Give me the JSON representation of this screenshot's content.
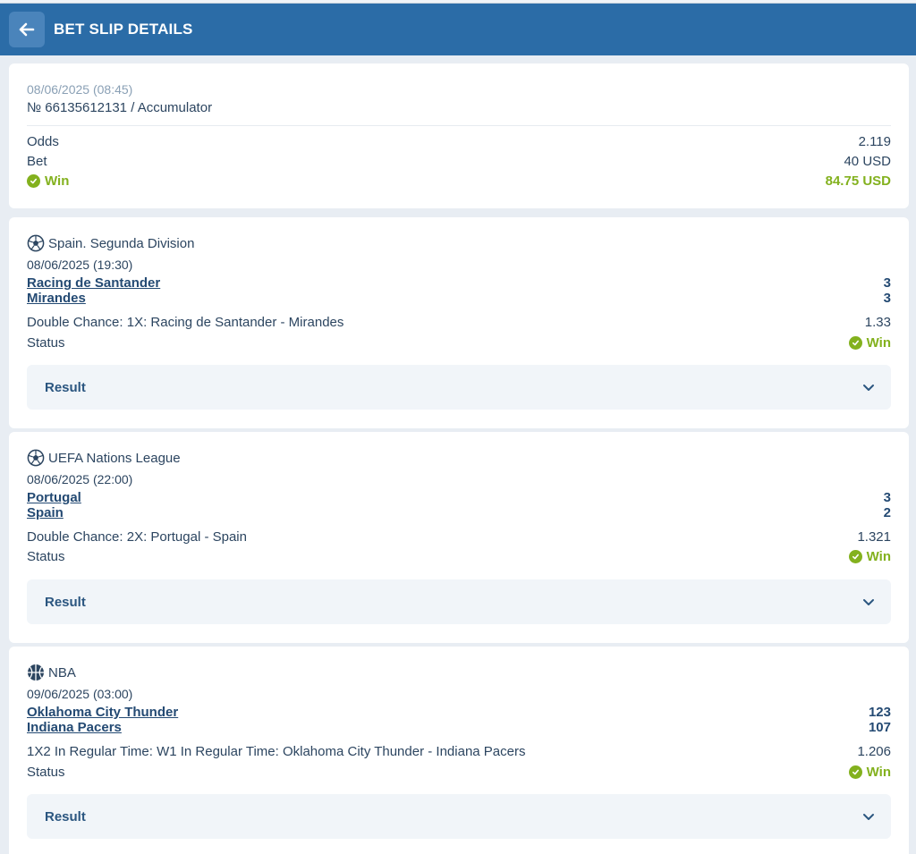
{
  "header": {
    "title": "BET SLIP DETAILS",
    "back_icon": "arrow-left-icon"
  },
  "colors": {
    "header_bg": "#2b6ca7",
    "win": "#83b11e",
    "text": "#2c4560"
  },
  "summary": {
    "date": "08/06/2025 (08:45)",
    "number": "№ 66135612131 / Accumulator",
    "odds_label": "Odds",
    "odds_value": "2.119",
    "bet_label": "Bet",
    "bet_value": "40 USD",
    "win_label": "Win",
    "win_value": "84.75 USD"
  },
  "events": [
    {
      "sport_icon": "soccer-ball-icon",
      "league": "Spain. Segunda Division",
      "date": "08/06/2025 (19:30)",
      "team1": "Racing de Santander",
      "score1": "3",
      "team2": "Mirandes",
      "score2": "3",
      "market": "Double Chance: 1X: Racing de Santander - Mirandes",
      "odds": "1.33",
      "status_label": "Status",
      "status_value": "Win",
      "result_label": "Result"
    },
    {
      "sport_icon": "soccer-ball-icon",
      "league": "UEFA Nations League",
      "date": "08/06/2025 (22:00)",
      "team1": "Portugal",
      "score1": "3",
      "team2": "Spain",
      "score2": "2",
      "market": "Double Chance: 2X: Portugal - Spain",
      "odds": "1.321",
      "status_label": "Status",
      "status_value": "Win",
      "result_label": "Result"
    },
    {
      "sport_icon": "basketball-icon",
      "league": "NBA",
      "date": "09/06/2025 (03:00)",
      "team1": "Oklahoma City Thunder",
      "score1": "123",
      "team2": "Indiana Pacers",
      "score2": "107",
      "market": "1X2 In Regular Time: W1 In Regular Time: Oklahoma City Thunder - Indiana Pacers",
      "odds": "1.206",
      "status_label": "Status",
      "status_value": "Win",
      "result_label": "Result"
    }
  ]
}
